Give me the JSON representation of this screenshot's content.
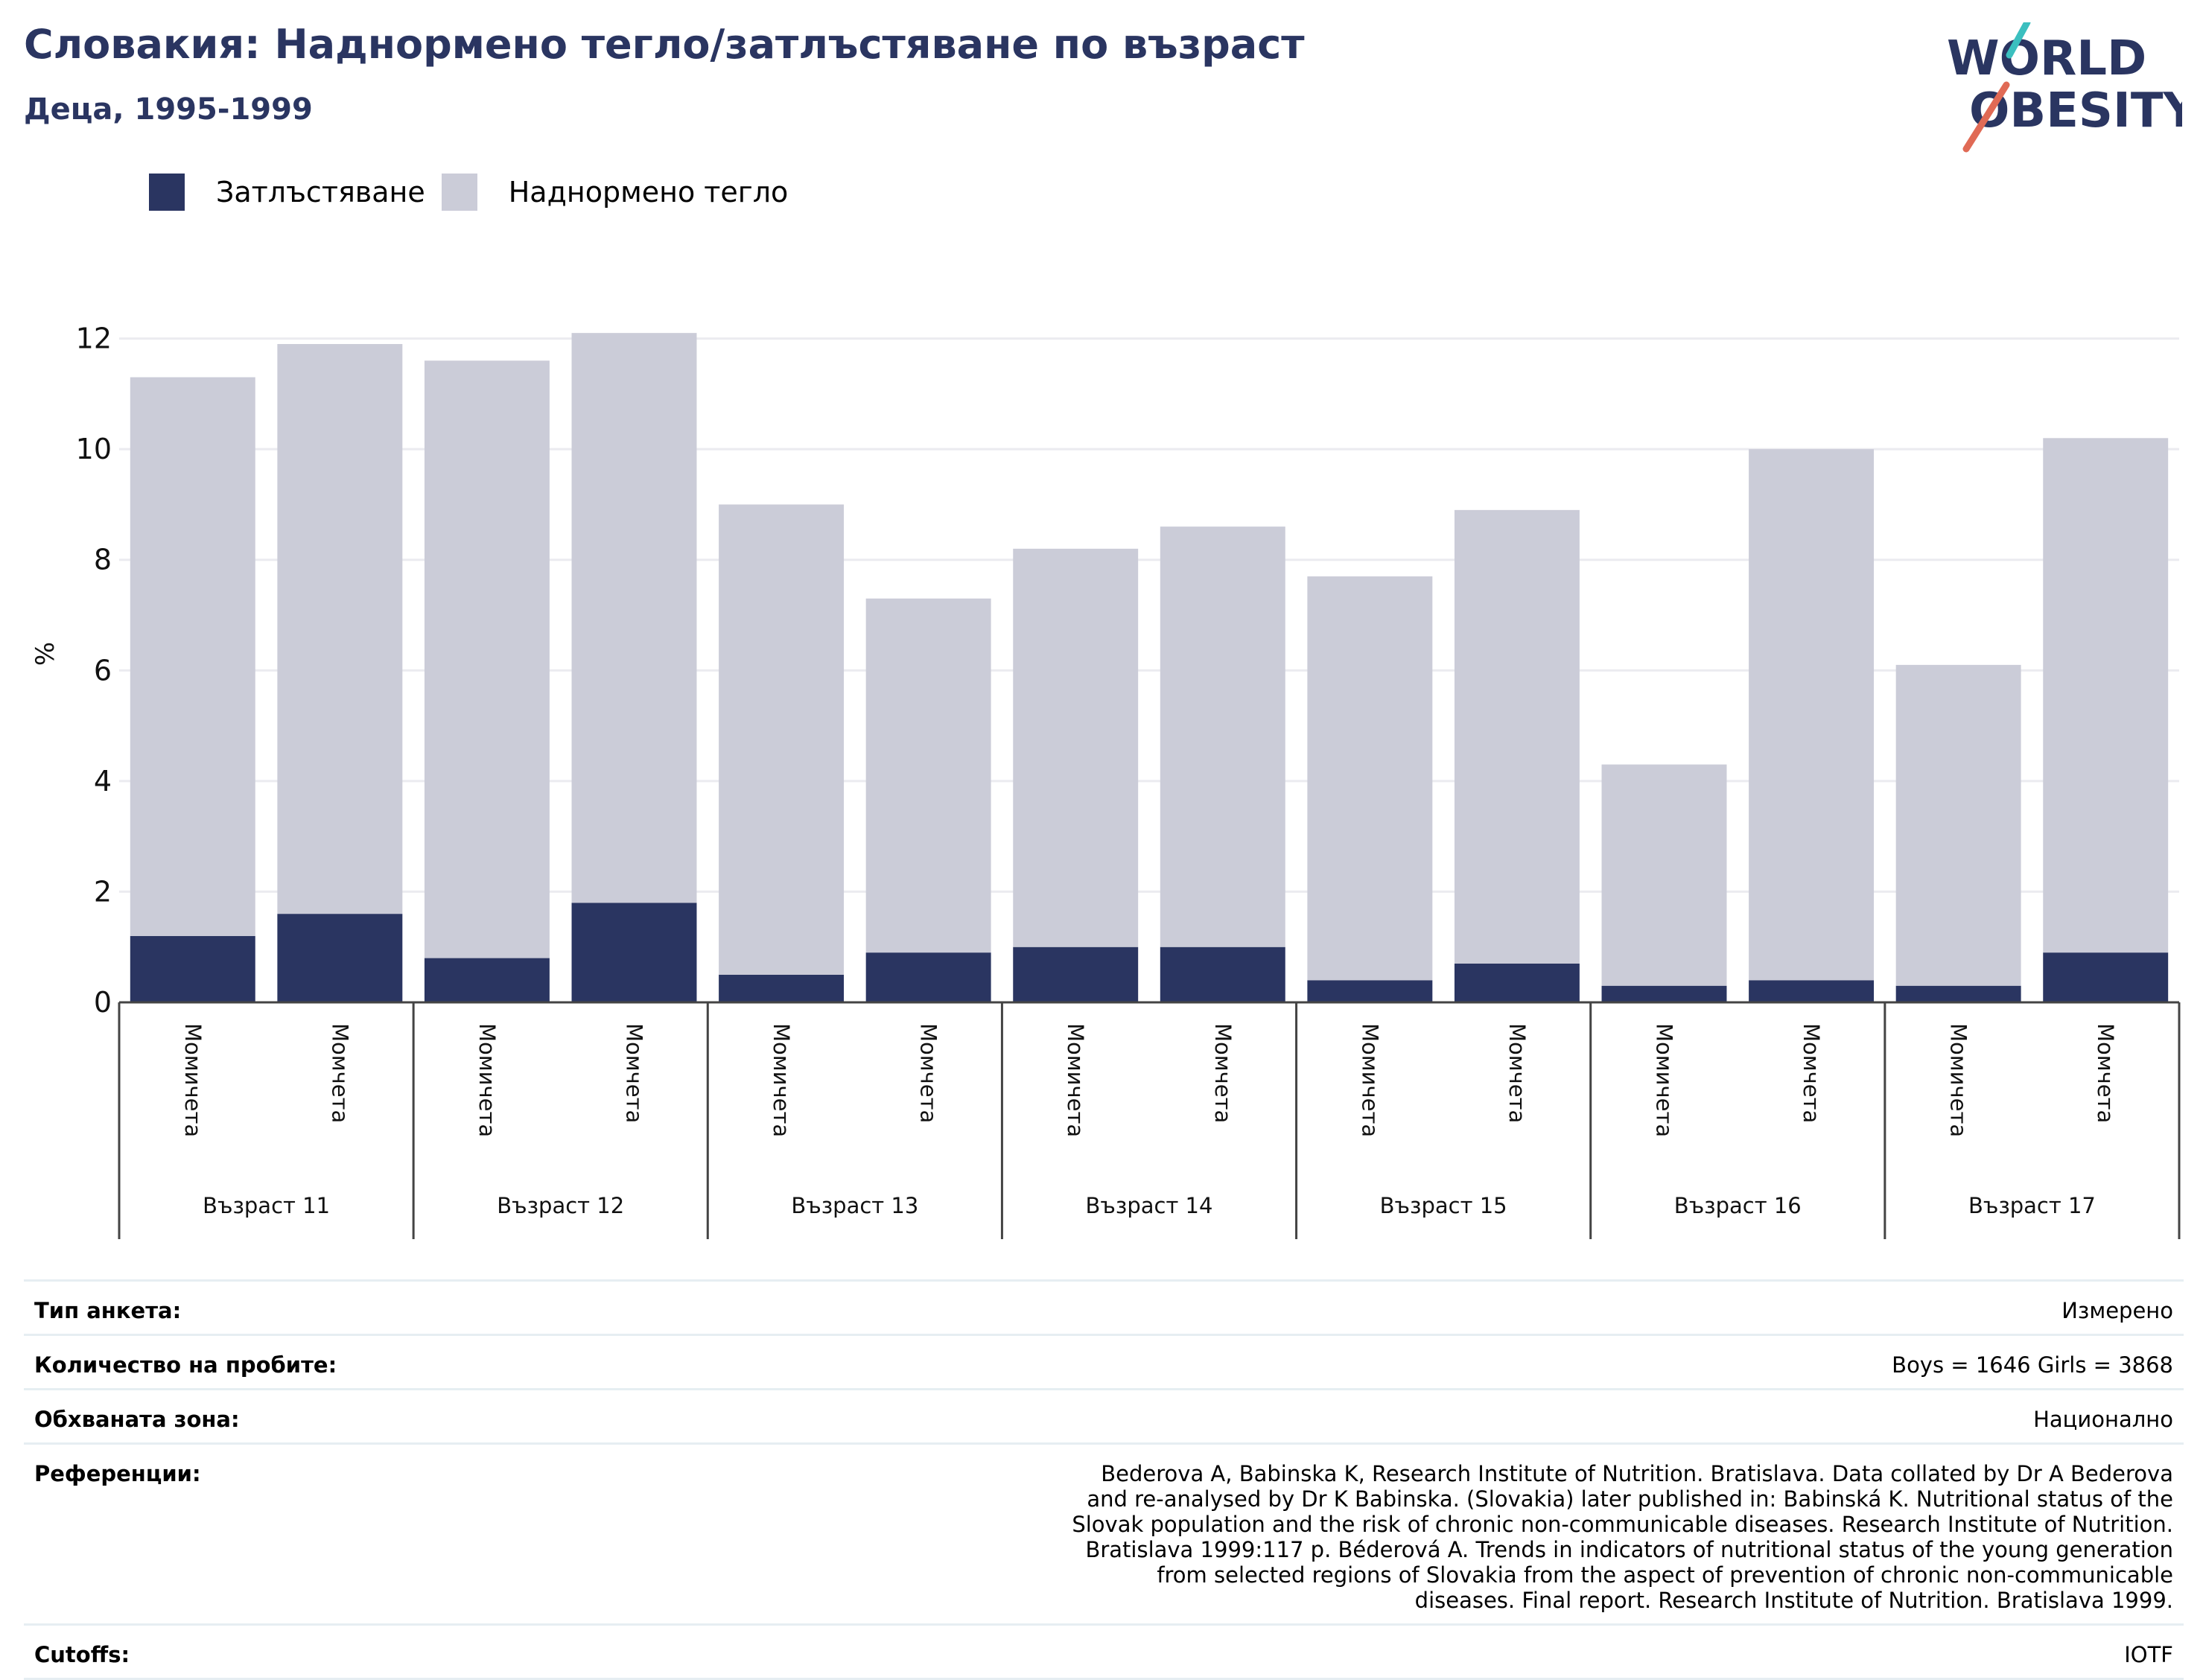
{
  "header": {
    "title": "Словакия: Наднормено тегло/затлъстяване по възраст",
    "subtitle": "Деца, 1995-1999"
  },
  "logo": {
    "line1": "WORLD",
    "line2": "OBESITY"
  },
  "legend": [
    {
      "label": "Затлъстяване",
      "color": "#2a3561"
    },
    {
      "label": "Наднормено тегло",
      "color": "#cbccd8"
    }
  ],
  "chart_data": {
    "type": "bar",
    "stacked": true,
    "ylabel": "%",
    "ylim": [
      0,
      12.6
    ],
    "yticks": [
      0,
      2,
      4,
      6,
      8,
      10,
      12
    ],
    "grid": true,
    "legend_position": "top-left",
    "groups": [
      "Възраст 11",
      "Възраст 12",
      "Възраст 13",
      "Възраст 14",
      "Възраст 15",
      "Възраст 16",
      "Възраст 17"
    ],
    "categories": [
      "Момичета",
      "Момчета",
      "Момичета",
      "Момчета",
      "Момичета",
      "Момчета",
      "Момичета",
      "Момчета",
      "Момичета",
      "Момчета",
      "Момичета",
      "Момчета",
      "Момичета",
      "Момчета"
    ],
    "series": [
      {
        "name": "Затлъстяване",
        "color": "#2a3561",
        "values": [
          1.2,
          1.6,
          0.8,
          1.8,
          0.5,
          0.9,
          1.0,
          1.0,
          0.4,
          0.7,
          0.3,
          0.4,
          0.3,
          0.9
        ]
      },
      {
        "name": "Наднормено тегло",
        "color": "#cbccd8",
        "values": [
          10.1,
          10.3,
          10.8,
          10.3,
          8.5,
          6.4,
          7.2,
          7.6,
          7.3,
          8.2,
          4.0,
          9.6,
          5.8,
          9.3
        ]
      }
    ]
  },
  "info": [
    {
      "label": "Тип анкета:",
      "value": "Измерено"
    },
    {
      "label": "Количество на пробите:",
      "value": "Boys = 1646 Girls = 3868"
    },
    {
      "label": "Обхваната зона:",
      "value": "Национално"
    },
    {
      "label": "Референции:",
      "value": "Bederova A, Babinska K, Research Institute of Nutrition. Bratislava. Data collated by Dr A Bederova and re-analysed by Dr K Babinska. (Slovakia) later published in: Babinská K. Nutritional status of the Slovak population and the risk of chronic non-communicable diseases. Research Institute of Nutrition. Bratislava 1999:117 p. Béderová A. Trends in indicators of nutritional status of the young generation from selected regions of Slovakia from the aspect of prevention of chronic non-communicable diseases. Final report. Research Institute of Nutrition. Bratislava 1999."
    },
    {
      "label": "Cutoffs:",
      "value": "IOTF"
    }
  ]
}
